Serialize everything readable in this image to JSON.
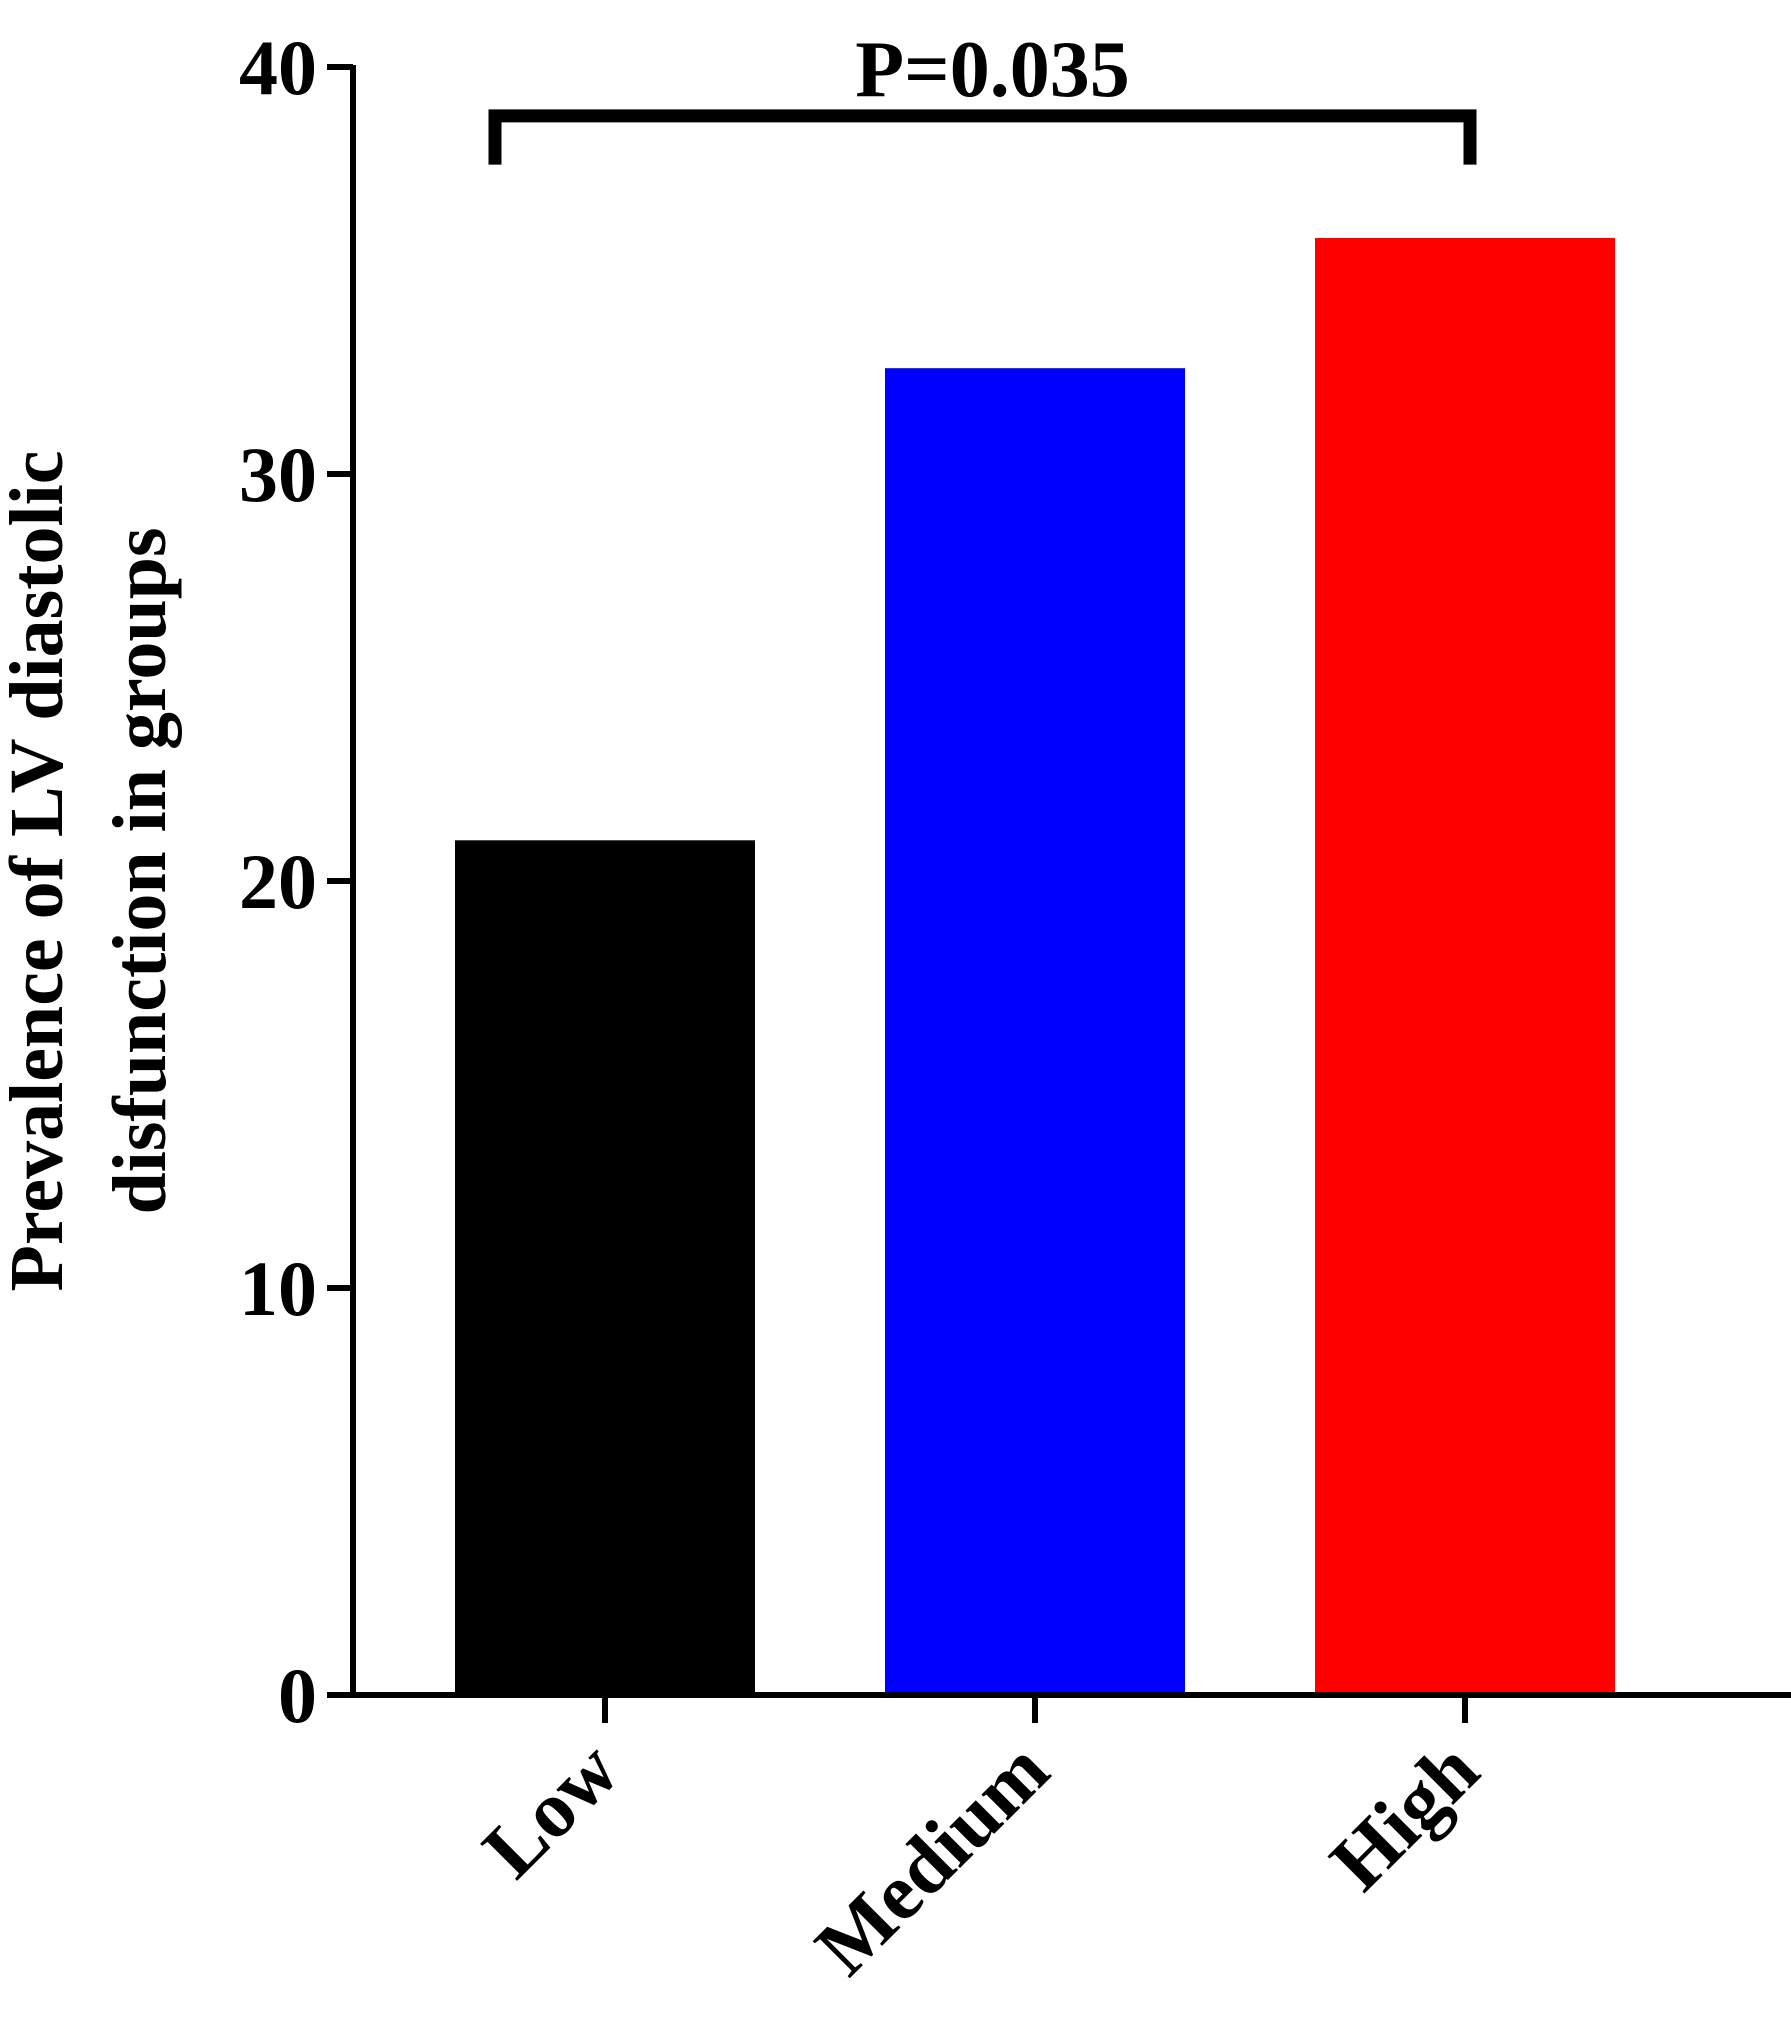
{
  "chart_data": {
    "type": "bar",
    "categories": [
      "Low",
      "Medium",
      "High"
    ],
    "values": [
      21,
      32.6,
      35.8
    ],
    "colors": [
      "#000000",
      "#0000ff",
      "#ff0000"
    ],
    "title": "",
    "xlabel": "",
    "ylabel": "Prevalence of LV diastolic disfunction in groups",
    "ylabel_lines": [
      "Prevalence of LV diastolic",
      "disfunction in groups"
    ],
    "ylim": [
      0,
      40
    ],
    "yticks": [
      0,
      10,
      20,
      30,
      40
    ],
    "grid": false,
    "legend": "none",
    "annotations": [
      {
        "text": "P=0.035",
        "from_category": "Low",
        "to_category": "High",
        "bracket_y": 38.8,
        "bracket_drop_to": 37.6
      }
    ]
  }
}
